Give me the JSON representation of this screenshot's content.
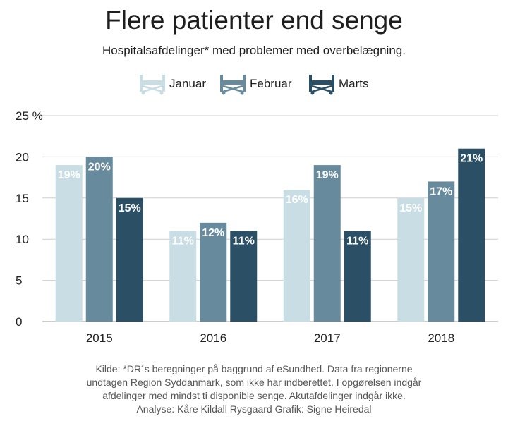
{
  "header": {
    "title": "Flere patienter end senge",
    "subtitle": "Hospitalsafdelinger* med problemer med overbelægning."
  },
  "legend": [
    {
      "label": "Januar",
      "color": "#c8dde4",
      "icon": "hospital-bed-icon"
    },
    {
      "label": "Februar",
      "color": "#678a9c",
      "icon": "hospital-bed-icon"
    },
    {
      "label": "Marts",
      "color": "#2b5066",
      "icon": "hospital-bed-icon"
    }
  ],
  "chart_data": {
    "type": "bar",
    "categories": [
      "2015",
      "2016",
      "2017",
      "2018"
    ],
    "series": [
      {
        "name": "Januar",
        "color": "#c8dde4",
        "values": [
          19,
          11,
          16,
          15
        ]
      },
      {
        "name": "Februar",
        "color": "#678a9c",
        "values": [
          20,
          12,
          19,
          17
        ]
      },
      {
        "name": "Marts",
        "color": "#2b5066",
        "values": [
          15,
          11,
          11,
          21
        ]
      }
    ],
    "data_labels": [
      [
        "19%",
        "11%",
        "16%",
        "15%"
      ],
      [
        "20%",
        "12%",
        "19%",
        "17%"
      ],
      [
        "15%",
        "11%",
        "11%",
        "21%"
      ]
    ],
    "yticks": [
      0,
      5,
      10,
      15,
      20,
      25
    ],
    "ytick_labels": [
      "0",
      "5",
      "10",
      "15",
      "20",
      "25 %"
    ],
    "ylim": [
      0,
      25
    ],
    "grid": true
  },
  "footnote": {
    "lines": [
      "Kilde: *DR´s beregninger på baggrund af eSundhed. Data fra regionerne",
      "undtagen Region Syddanmark, som ikke har indberettet. I opgørelsen indgår",
      "afdelinger med mindst ti disponible senge. Akutafdelinger indgår ikke.",
      "Analyse: Kåre Kildall Rysgaard    Grafik: Signe Heiredal"
    ]
  }
}
